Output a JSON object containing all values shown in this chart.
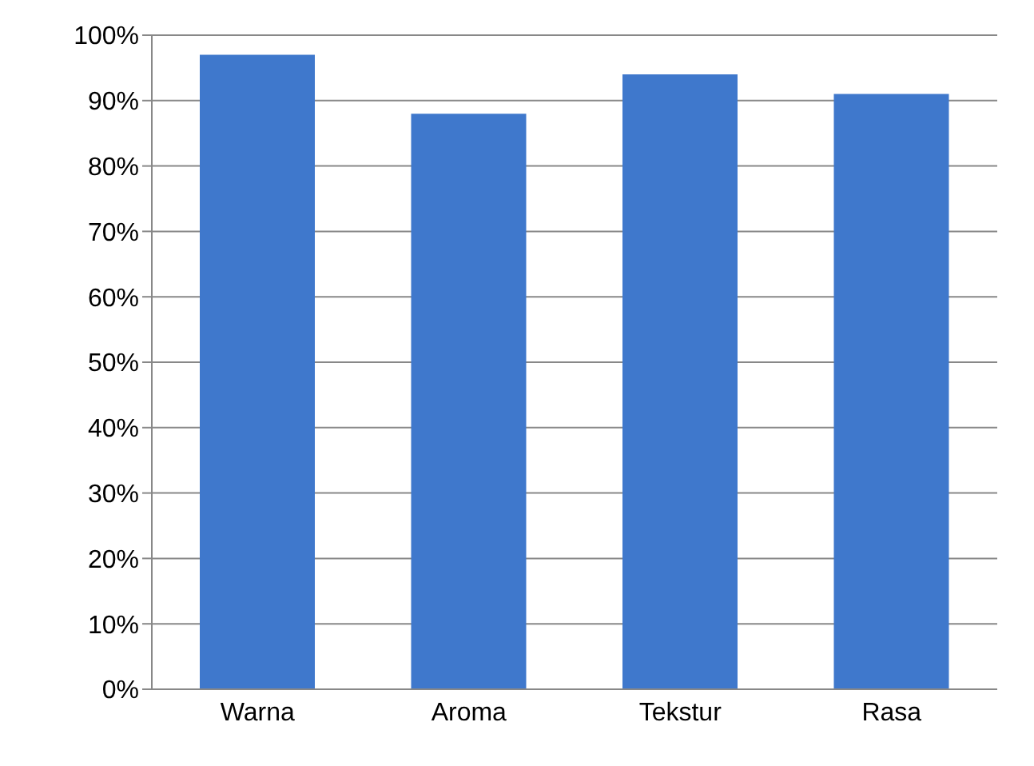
{
  "chart_data": {
    "type": "bar",
    "categories": [
      "Warna",
      "Aroma",
      "Tekstur",
      "Rasa"
    ],
    "values": [
      97,
      88,
      94,
      91
    ],
    "color": "#3f78cc",
    "ylim": [
      0,
      100
    ],
    "yticks": [
      {
        "value": 0,
        "label": "0%"
      },
      {
        "value": 10,
        "label": "10%"
      },
      {
        "value": 20,
        "label": "20%"
      },
      {
        "value": 30,
        "label": "30%"
      },
      {
        "value": 40,
        "label": "40%"
      },
      {
        "value": 50,
        "label": "50%"
      },
      {
        "value": 60,
        "label": "60%"
      },
      {
        "value": 70,
        "label": "70%"
      },
      {
        "value": 80,
        "label": "80%"
      },
      {
        "value": 90,
        "label": "90%"
      },
      {
        "value": 100,
        "label": "100%"
      }
    ],
    "grid": "y"
  }
}
